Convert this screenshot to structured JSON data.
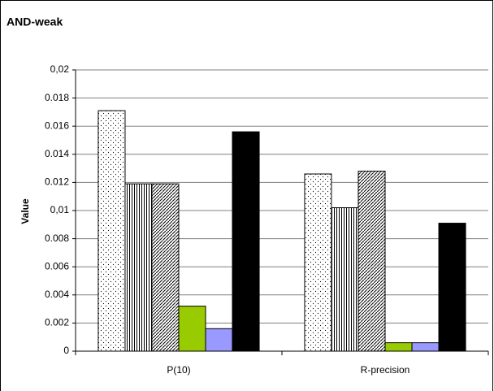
{
  "chart_data": {
    "type": "bar",
    "title": "AND-weak",
    "y_label": "Value",
    "categories": [
      "P(10)",
      "R-precision"
    ],
    "series": [
      {
        "color": "#ffffff",
        "pattern": "dots",
        "values": [
          0.0171,
          0.0126
        ]
      },
      {
        "color": "#ffffff",
        "pattern": "vertical",
        "values": [
          0.0119,
          0.0102
        ]
      },
      {
        "color": "#ffffff",
        "pattern": "diagonal",
        "values": [
          0.0119,
          0.0128
        ]
      },
      {
        "color": "#99cc00",
        "values": [
          0.0032,
          0.0006
        ]
      },
      {
        "color": "#9999ff",
        "values": [
          0.0016,
          0.0006
        ]
      },
      {
        "color": "#000000",
        "values": [
          0.0156,
          0.0091
        ]
      }
    ],
    "ylim": [
      0,
      0.02
    ],
    "yticks": [
      0,
      0.002,
      0.004,
      0.006,
      0.008,
      {
        "value": 0.01,
        "label": "0,01"
      },
      0.012,
      0.014,
      0.016,
      0.018,
      {
        "value": 0.02,
        "label": "0,02"
      }
    ],
    "grid": true
  }
}
